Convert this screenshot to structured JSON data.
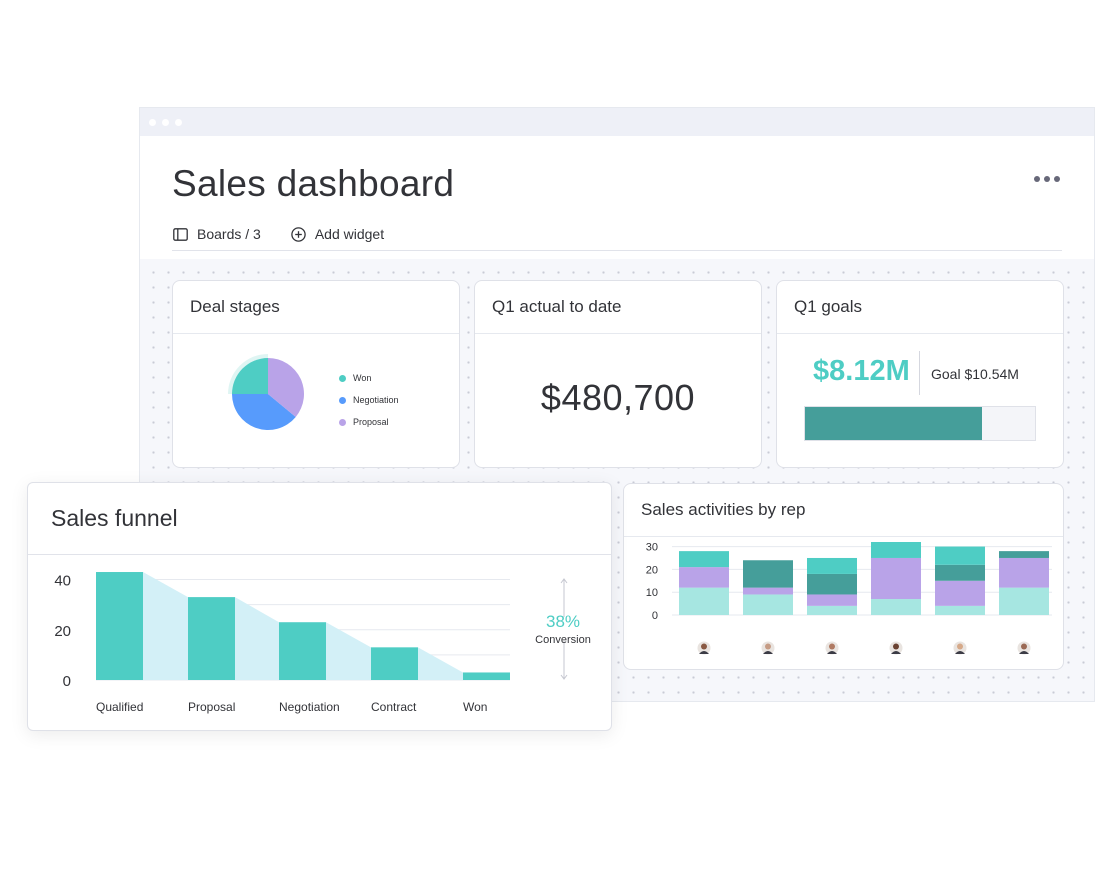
{
  "window": {
    "title": "Sales dashboard",
    "toolbar": {
      "boards_label": "Boards / 3",
      "add_widget_label": "Add widget"
    }
  },
  "widgets": {
    "deal_stages": {
      "title": "Deal stages",
      "legend": [
        {
          "label": "Won",
          "color": "#4ecdc4"
        },
        {
          "label": "Negotiation",
          "color": "#579bfc"
        },
        {
          "label": "Proposal",
          "color": "#b9a3e8"
        }
      ]
    },
    "q1_actual": {
      "title": "Q1 actual to date",
      "value": "$480,700"
    },
    "q1_goals": {
      "title": "Q1 goals",
      "value": "$8.12M",
      "goal_label": "Goal $10.54M",
      "progress": 0.77
    },
    "sales_activities": {
      "title": "Sales activities by rep"
    },
    "sales_funnel": {
      "title": "Sales funnel",
      "conversion_value": "38%",
      "conversion_label": "Conversion"
    }
  },
  "colors": {
    "teal": "#4ecdc4",
    "dark_teal": "#459e9a",
    "light_teal": "#a6e6e1",
    "purple": "#b9a3e8",
    "blue": "#579bfc",
    "funnel_shade": "#d3f0f7"
  },
  "chart_data": [
    {
      "type": "pie",
      "title": "Deal stages",
      "categories": [
        "Won",
        "Negotiation",
        "Proposal"
      ],
      "values": [
        25,
        39,
        36
      ]
    },
    {
      "type": "bar",
      "title": "Sales funnel",
      "categories": [
        "Qualified",
        "Proposal",
        "Negotiation",
        "Contract",
        "Won"
      ],
      "values": [
        43,
        33,
        23,
        13,
        3
      ],
      "yticks": [
        0,
        20,
        40
      ],
      "ylim": [
        0,
        45
      ]
    },
    {
      "type": "bar",
      "stacked": true,
      "title": "Sales activities by rep",
      "categories": [
        "Rep 1",
        "Rep 2",
        "Rep 3",
        "Rep 4",
        "Rep 5",
        "Rep 6"
      ],
      "yticks": [
        0,
        10,
        20,
        30
      ],
      "ylim": [
        0,
        32
      ],
      "series": [
        {
          "color": "#a6e6e1",
          "values": [
            12,
            9,
            4,
            7,
            4,
            12
          ]
        },
        {
          "color": "#b9a3e8",
          "values": [
            9,
            3,
            5,
            18,
            11,
            13
          ]
        },
        {
          "color": "#459e9a",
          "values": [
            0,
            12,
            9,
            0,
            7,
            3
          ]
        },
        {
          "color": "#4ecdc4",
          "values": [
            7,
            0,
            7,
            7,
            8,
            0
          ]
        }
      ]
    }
  ]
}
